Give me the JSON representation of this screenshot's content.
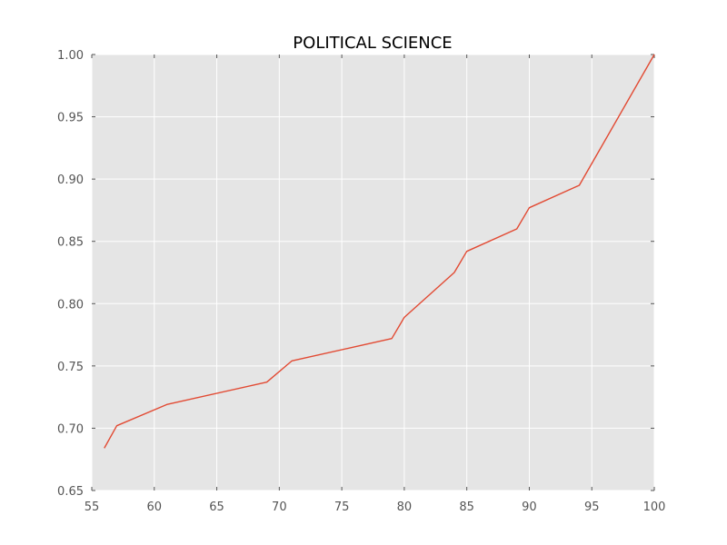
{
  "chart_data": {
    "type": "line",
    "title": "POLITICAL SCIENCE",
    "xlabel": "",
    "ylabel": "",
    "xlim": [
      55,
      100
    ],
    "ylim": [
      0.65,
      1.0
    ],
    "grid": true,
    "xticks": [
      55,
      60,
      65,
      70,
      75,
      80,
      85,
      90,
      95,
      100
    ],
    "yticks": [
      0.65,
      0.7,
      0.75,
      0.8,
      0.85,
      0.9,
      0.95,
      1.0
    ],
    "xtick_labels": [
      "55",
      "60",
      "65",
      "70",
      "75",
      "80",
      "85",
      "90",
      "95",
      "100"
    ],
    "ytick_labels": [
      "0.65",
      "0.70",
      "0.75",
      "0.80",
      "0.85",
      "0.90",
      "0.95",
      "1.00"
    ],
    "series": [
      {
        "color": "#e24a33",
        "x": [
          56,
          57,
          61,
          69,
          71,
          79,
          80,
          84,
          85,
          89,
          90,
          94,
          100
        ],
        "y": [
          0.684,
          0.702,
          0.719,
          0.737,
          0.754,
          0.772,
          0.789,
          0.825,
          0.842,
          0.86,
          0.877,
          0.895,
          1.0
        ]
      }
    ],
    "background": "#e5e5e5",
    "grid_color": "#ffffff"
  }
}
